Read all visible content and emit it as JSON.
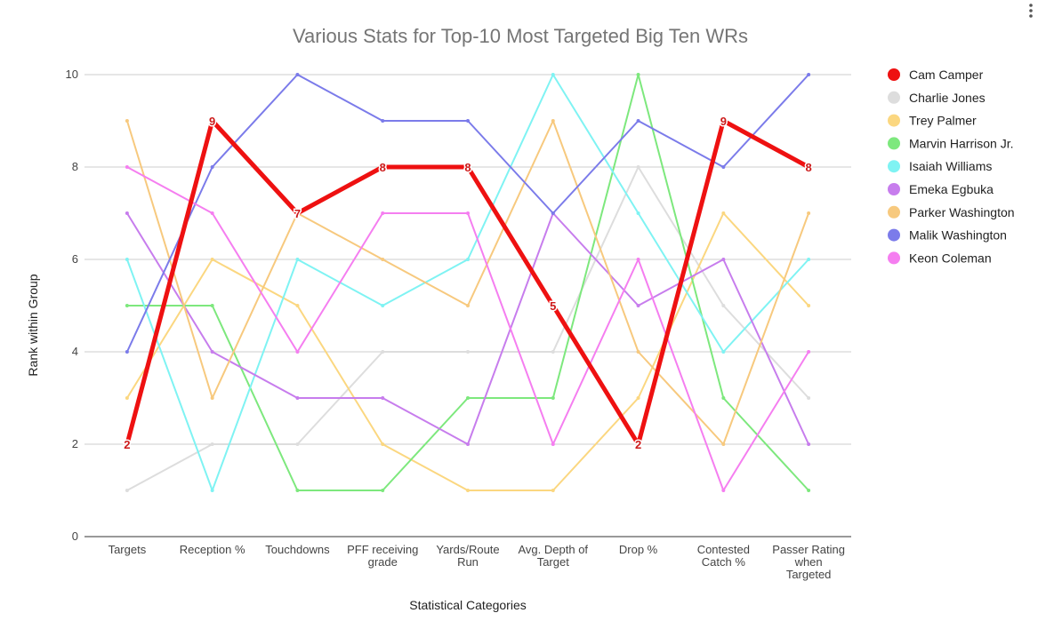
{
  "chart_data": {
    "type": "line",
    "title": "Various Stats for Top-10 Most Targeted Big Ten WRs",
    "xlabel": "Statistical Categories",
    "ylabel": "Rank within Group",
    "ylim": [
      0,
      10
    ],
    "yticks": [
      "0",
      "2",
      "4",
      "6",
      "8",
      "10"
    ],
    "grid": true,
    "legend_position": "right",
    "categories": [
      [
        "Targets"
      ],
      [
        "Reception %"
      ],
      [
        "Touchdowns"
      ],
      [
        "PFF receiving",
        "grade"
      ],
      [
        "Yards/Route",
        "Run"
      ],
      [
        "Avg. Depth of",
        "Target"
      ],
      [
        "Drop %"
      ],
      [
        "Contested",
        "Catch %"
      ],
      [
        "Passer Rating",
        "when",
        "Targeted"
      ]
    ],
    "series": [
      {
        "name": "Cam Camper",
        "color": "#ee1111",
        "values": [
          2,
          9,
          7,
          8,
          8,
          5,
          2,
          9,
          8
        ],
        "highlight": true
      },
      {
        "name": "Charlie Jones",
        "color": "#dddddd",
        "values": [
          1,
          2,
          2,
          4,
          4,
          4,
          8,
          5,
          3
        ]
      },
      {
        "name": "Trey Palmer",
        "color": "#fbd780",
        "values": [
          3,
          6,
          5,
          2,
          1,
          1,
          3,
          7,
          5
        ]
      },
      {
        "name": "Marvin Harrison Jr.",
        "color": "#7de87d",
        "values": [
          5,
          5,
          1,
          1,
          3,
          3,
          10,
          3,
          1
        ]
      },
      {
        "name": "Isaiah Williams",
        "color": "#7ff3f3",
        "values": [
          6,
          1,
          6,
          5,
          6,
          10,
          7,
          4,
          6
        ]
      },
      {
        "name": "Emeka Egbuka",
        "color": "#c77ded",
        "values": [
          7,
          4,
          3,
          3,
          2,
          7,
          5,
          6,
          2
        ]
      },
      {
        "name": "Parker Washington",
        "color": "#f7c97e",
        "values": [
          9,
          3,
          7,
          6,
          5,
          9,
          4,
          2,
          7
        ]
      },
      {
        "name": "Malik Washington",
        "color": "#7b7bea",
        "values": [
          4,
          8,
          10,
          9,
          9,
          7,
          9,
          8,
          10
        ]
      },
      {
        "name": "Keon Coleman",
        "color": "#f57ef0",
        "values": [
          8,
          7,
          4,
          7,
          7,
          2,
          6,
          1,
          4
        ]
      }
    ]
  }
}
